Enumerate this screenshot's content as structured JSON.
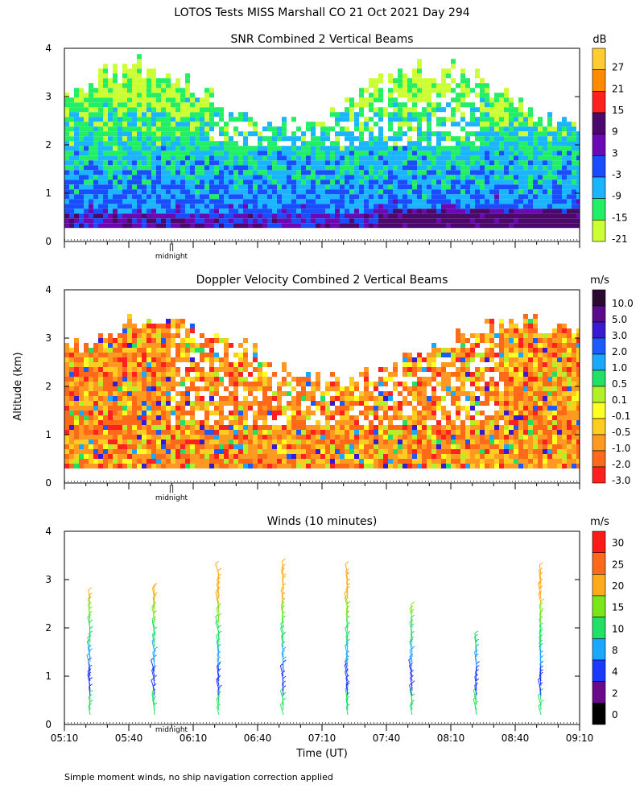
{
  "page_title": "LOTOS Tests MISS Marshall CO  21 Oct 2021 Day 294",
  "ylabel": "Altitude (km)",
  "xlabel": "Time (UT)",
  "footnote": "Simple moment winds, no ship navigation correction applied",
  "midnight_label": "midnight",
  "midnight_marker": "||",
  "chart_data": [
    {
      "type": "heatmap",
      "id": "snr",
      "title": "SNR Combined 2 Vertical Beams",
      "units": "dB",
      "ylim": [
        0,
        4
      ],
      "yticks": [
        "0",
        "1",
        "2",
        "3",
        "4"
      ],
      "xlim": [
        "05:10",
        "09:10"
      ],
      "colorbar_labels": [
        "27",
        "21",
        "15",
        "9",
        "3",
        "-3",
        "-9",
        "-15",
        "-21"
      ],
      "colorbar_colors": [
        "#ffcc33",
        "#ff8c00",
        "#ff2020",
        "#4b0a6a",
        "#6a0ab4",
        "#1a4dff",
        "#1ab4ff",
        "#22ee66",
        "#ccff33"
      ],
      "description": "SNR mostly -21 to -3 dB between 0.3 and 3.3 km; strongest returns (3 to 15 dB) near surface after 07:40"
    },
    {
      "type": "heatmap",
      "id": "doppler",
      "title": "Doppler Velocity Combined 2 Vertical Beams",
      "units": "m/s",
      "ylim": [
        0,
        4
      ],
      "yticks": [
        "0",
        "1",
        "2",
        "3",
        "4"
      ],
      "xlim": [
        "05:10",
        "09:10"
      ],
      "colorbar_labels": [
        "10.0",
        "5.0",
        "3.0",
        "2.0",
        "1.0",
        "0.5",
        "0.1",
        "-0.1",
        "-0.5",
        "-1.0",
        "-2.0",
        "-3.0"
      ],
      "colorbar_colors": [
        "#2a0a30",
        "#5a0a8a",
        "#3a1ad0",
        "#1a5aff",
        "#1aa8ff",
        "#22e066",
        "#b4f02a",
        "#ffff22",
        "#ffcc22",
        "#ff9922",
        "#ff6a1a",
        "#ff2020"
      ],
      "description": "Mostly -0.5 to -3.0 m/s (orange) between 0.5 and 3 km"
    },
    {
      "type": "scatter",
      "id": "winds",
      "title": "Winds (10 minutes)",
      "units": "m/s",
      "ylim": [
        0,
        4
      ],
      "yticks": [
        "0",
        "1",
        "2",
        "3",
        "4"
      ],
      "xticks": [
        "05:10",
        "05:40",
        "06:10",
        "06:40",
        "07:10",
        "07:40",
        "08:10",
        "08:40",
        "09:10"
      ],
      "colorbar_labels": [
        "30",
        "25",
        "20",
        "15",
        "10",
        "8",
        "4",
        "2",
        "0"
      ],
      "colorbar_colors": [
        "#ff1a1a",
        "#ff6a1a",
        "#ffaa1a",
        "#7ae61a",
        "#22e066",
        "#1aa8ff",
        "#1a3aff",
        "#6a0a8a",
        "#000000"
      ],
      "profiles_time": [
        "05:25",
        "05:55",
        "06:25",
        "06:55",
        "07:25",
        "07:55",
        "08:25",
        "08:55"
      ],
      "profiles_top_km": [
        2.7,
        2.8,
        3.2,
        3.3,
        3.2,
        2.4,
        1.8,
        3.2
      ]
    }
  ]
}
